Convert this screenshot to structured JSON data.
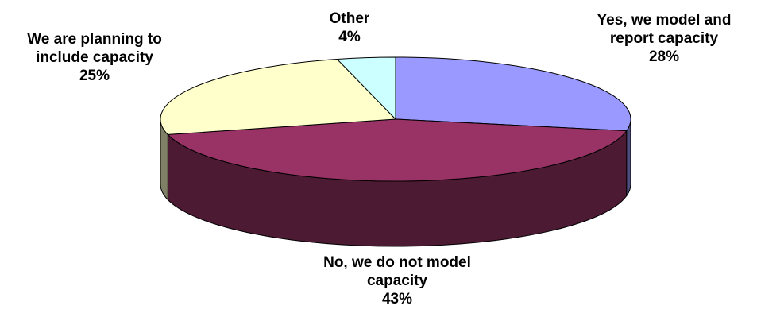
{
  "chart_data": {
    "type": "pie",
    "style": "3d-exploded-none",
    "slices": [
      {
        "label_lines": [
          "Yes, we model and",
          "report capacity"
        ],
        "percent_label": "28%",
        "value": 28,
        "color": "#9999ff"
      },
      {
        "label_lines": [
          "No, we do not model",
          "capacity"
        ],
        "percent_label": "43%",
        "value": 43,
        "color": "#993366"
      },
      {
        "label_lines": [
          "We are planning to",
          "include capacity"
        ],
        "percent_label": "25%",
        "value": 25,
        "color": "#ffffcc"
      },
      {
        "label_lines": [
          "Other"
        ],
        "percent_label": "4%",
        "value": 4,
        "color": "#ccffff"
      }
    ],
    "title": "",
    "legend": "none"
  }
}
